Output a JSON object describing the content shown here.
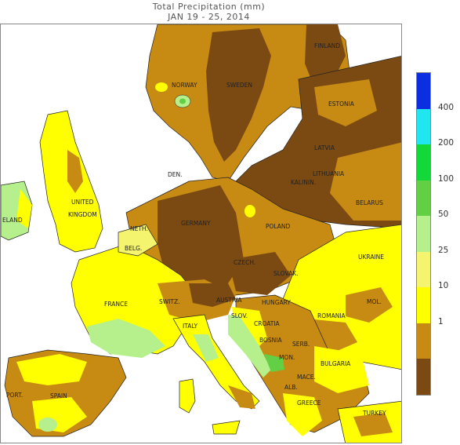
{
  "title": {
    "line1": "Total Precipitation (mm)",
    "line2": "JAN 19 - 25, 2014"
  },
  "legend": {
    "bins": [
      {
        "color": "#0a2ee0"
      },
      {
        "color": "#1fe6ef"
      },
      {
        "color": "#12d83a"
      },
      {
        "color": "#63cf45"
      },
      {
        "color": "#b5f08c"
      },
      {
        "color": "#f4f46e"
      },
      {
        "color": "#ffff00"
      },
      {
        "color": "#c78a12"
      },
      {
        "color": "#7a4a12"
      }
    ],
    "ticks": [
      "400",
      "200",
      "100",
      "50",
      "25",
      "10",
      "1"
    ]
  },
  "map": {
    "colors": {
      "sea": "#ffffff",
      "dark_brown": "#7a4a12",
      "brown": "#c78a12",
      "yellow": "#ffff00",
      "pale_yellow": "#f4f46e",
      "light_green": "#b5f08c",
      "green": "#63cf45",
      "bright_green": "#12d83a"
    },
    "labels": [
      {
        "id": "finland",
        "text": "FINLAND"
      },
      {
        "id": "norway",
        "text": "NORWAY"
      },
      {
        "id": "sweden",
        "text": "SWEDEN"
      },
      {
        "id": "estonia",
        "text": "ESTONIA"
      },
      {
        "id": "latvia",
        "text": "LATVIA"
      },
      {
        "id": "lithuania",
        "text": "LITHUANIA"
      },
      {
        "id": "kalinin",
        "text": "KALININ."
      },
      {
        "id": "belarus",
        "text": "BELARUS"
      },
      {
        "id": "den",
        "text": "DEN."
      },
      {
        "id": "ireland",
        "text": "ELAND"
      },
      {
        "id": "uk1",
        "text": "UNITED"
      },
      {
        "id": "uk2",
        "text": "KINGDOM"
      },
      {
        "id": "neth",
        "text": "NETH."
      },
      {
        "id": "belg",
        "text": "BELG."
      },
      {
        "id": "germany",
        "text": "GERMANY"
      },
      {
        "id": "poland",
        "text": "POLAND"
      },
      {
        "id": "ukraine",
        "text": "UKRAINE"
      },
      {
        "id": "czech",
        "text": "CZECH."
      },
      {
        "id": "slovak",
        "text": "SLOVAK."
      },
      {
        "id": "france",
        "text": "FRANCE"
      },
      {
        "id": "switz",
        "text": "SWITZ."
      },
      {
        "id": "austria",
        "text": "AUSTRIA"
      },
      {
        "id": "hungary",
        "text": "HUNGARY"
      },
      {
        "id": "mol",
        "text": "MOL."
      },
      {
        "id": "slov",
        "text": "SLOV."
      },
      {
        "id": "croatia",
        "text": "CROATIA"
      },
      {
        "id": "romania",
        "text": "ROMANIA"
      },
      {
        "id": "italy",
        "text": "ITALY"
      },
      {
        "id": "bosnia",
        "text": "BOSNIA"
      },
      {
        "id": "serb",
        "text": "SERB."
      },
      {
        "id": "mon",
        "text": "MON."
      },
      {
        "id": "bulgaria",
        "text": "BULGARIA"
      },
      {
        "id": "mace",
        "text": "MACE."
      },
      {
        "id": "alb",
        "text": "ALB."
      },
      {
        "id": "greece",
        "text": "GREECE"
      },
      {
        "id": "turkey",
        "text": "TURKEY"
      },
      {
        "id": "port",
        "text": "PORT."
      },
      {
        "id": "spain",
        "text": "SPAIN"
      }
    ]
  }
}
